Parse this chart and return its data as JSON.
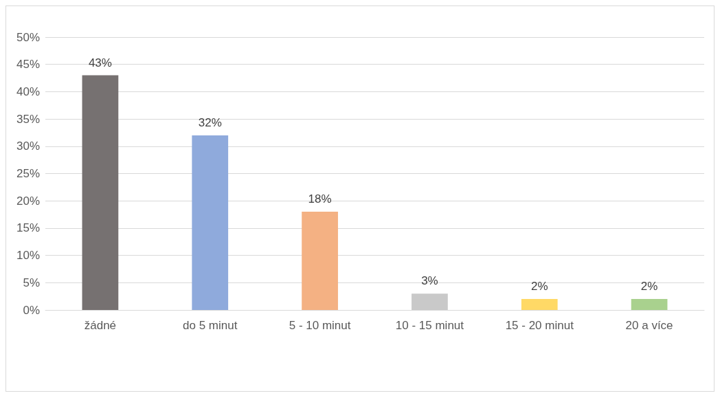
{
  "chart_data": {
    "type": "bar",
    "categories": [
      "žádné",
      "do 5 minut",
      "5 - 10 minut",
      "10 - 15 minut",
      "15 - 20 minut",
      "20 a více"
    ],
    "values": [
      43,
      32,
      18,
      3,
      2,
      2
    ],
    "colors": [
      "#767171",
      "#8faadc",
      "#f4b183",
      "#c9c9c9",
      "#ffd966",
      "#a9d18e"
    ],
    "value_labels": [
      "43%",
      "32%",
      "18%",
      "3%",
      "2%",
      "2%"
    ],
    "ylim": [
      0,
      50
    ],
    "yticks": [
      {
        "value": 0,
        "label": "0%"
      },
      {
        "value": 5,
        "label": "5%"
      },
      {
        "value": 10,
        "label": "10%"
      },
      {
        "value": 15,
        "label": "15%"
      },
      {
        "value": 20,
        "label": "20%"
      },
      {
        "value": 25,
        "label": "25%"
      },
      {
        "value": 30,
        "label": "30%"
      },
      {
        "value": 35,
        "label": "35%"
      },
      {
        "value": 40,
        "label": "40%"
      },
      {
        "value": 45,
        "label": "45%"
      },
      {
        "value": 50,
        "label": "50%"
      }
    ],
    "grid": "y"
  }
}
